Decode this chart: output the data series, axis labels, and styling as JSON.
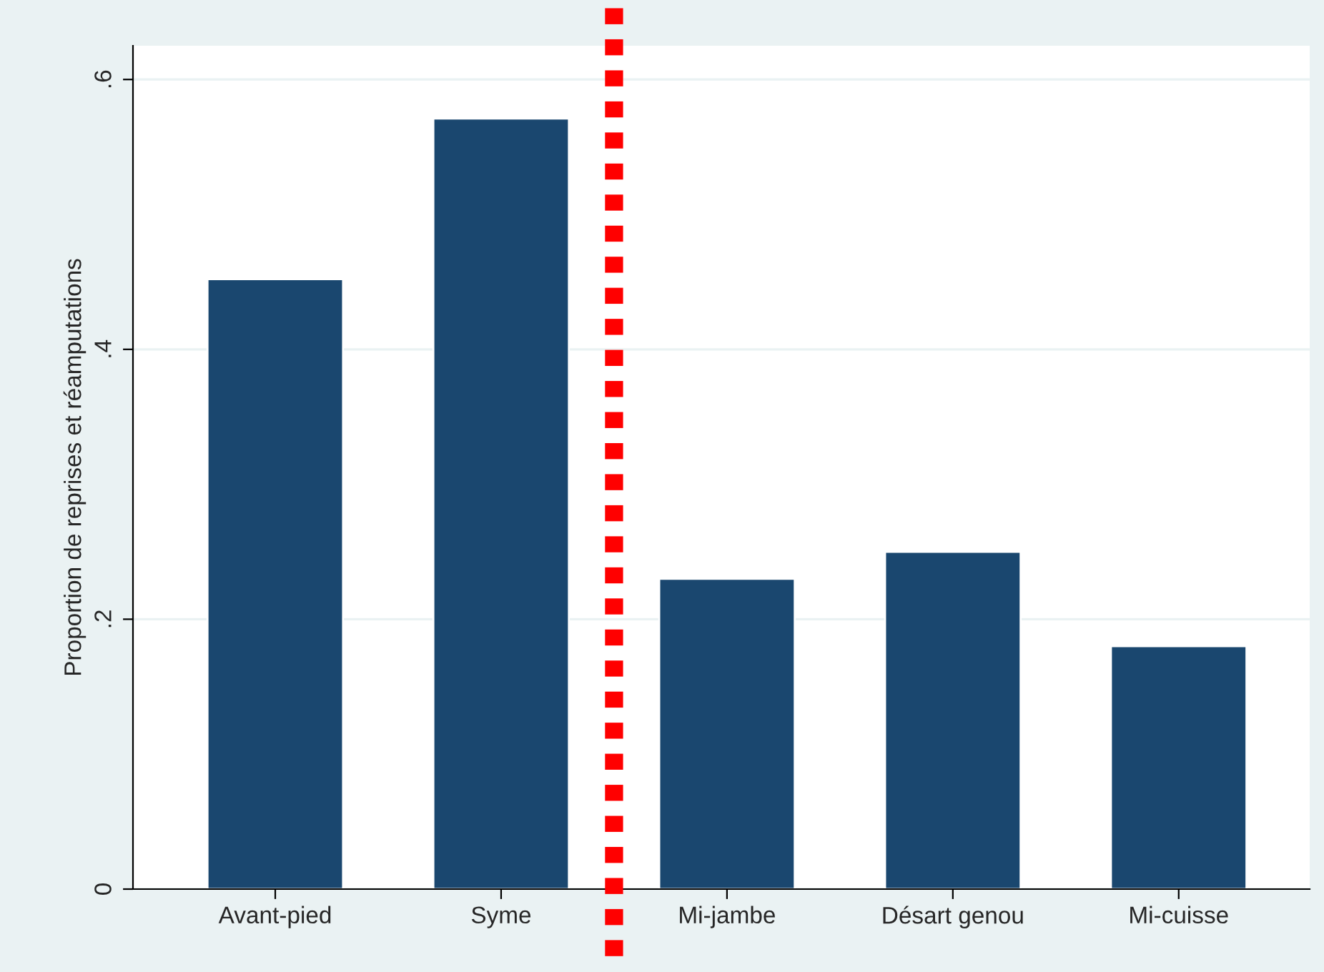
{
  "chart_data": {
    "type": "bar",
    "ylabel": "Proportion de reprises et réamputations",
    "categories": [
      "Avant-pied",
      "Syme",
      "Mi-jambe",
      "Désart genou",
      "Mi-cuisse"
    ],
    "values": [
      0.452,
      0.571,
      0.23,
      0.25,
      0.18
    ],
    "color": "#1a476f",
    "ylim": [
      0,
      0.625
    ],
    "yticks": [
      {
        "value": 0,
        "label": "0"
      },
      {
        "value": 0.2,
        "label": ".2"
      },
      {
        "value": 0.4,
        "label": ".4"
      },
      {
        "value": 0.6,
        "label": ".6"
      }
    ],
    "grid": "y"
  }
}
